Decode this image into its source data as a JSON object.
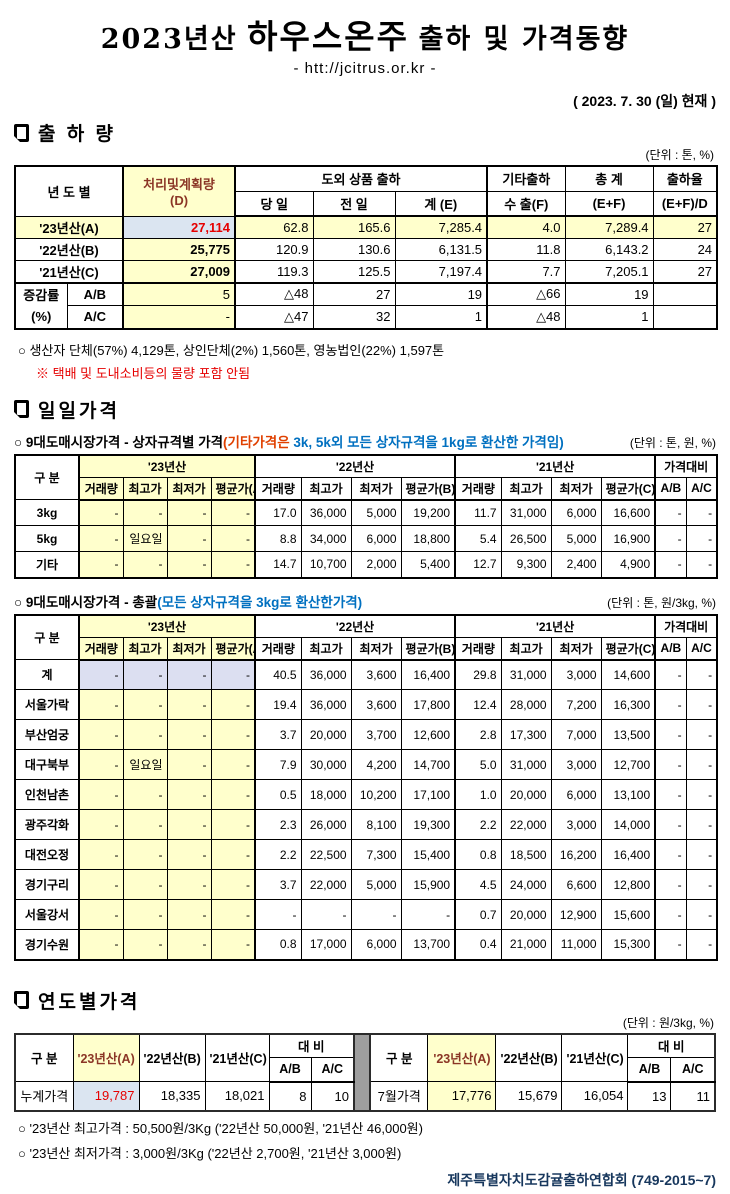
{
  "page": {
    "title_prefix": "2023년산",
    "title_main": "하우스온주",
    "title_suffix": "출하 및 가격동향",
    "url": "- htt://jcitrus.or.kr -",
    "as_of": "( 2023.  7.  30 (일) 현재 )",
    "org": "제주특별자치도감귤출하연합회 (749-2015~7)"
  },
  "colors": {
    "highlight_yellow": "#ffffcc",
    "highlight_blue": "#dbe5f1",
    "highlight_lavender": "#dcdff1",
    "red_value": "#e60000",
    "note_blue": "#0070c0",
    "org_navy": "#17375d"
  },
  "shipment": {
    "heading": "출 하 량",
    "unit": "(단위 : 톤, %)",
    "header": {
      "year": "년 도 별",
      "plan1": "처리및계획량",
      "plan2": "(D)",
      "island_group": "도외 상품 출하",
      "today": "당 일",
      "yesterday": "전 일",
      "total_e": "계 (E)",
      "other_group": "기타출하",
      "export_f": "수 출(F)",
      "grand1": "총   계",
      "grand2": "(E+F)",
      "rate1": "출하율",
      "rate2": "(E+F)/D"
    },
    "rows": {
      "a": {
        "label": "'23년산(A)",
        "plan": "27,114",
        "c1": "62.8",
        "c2": "165.6",
        "c3": "7,285.4",
        "c4": "4.0",
        "c5": "7,289.4",
        "c6": "27"
      },
      "b": {
        "label": "'22년산(B)",
        "plan": "25,775",
        "c1": "120.9",
        "c2": "130.6",
        "c3": "6,131.5",
        "c4": "11.8",
        "c5": "6,143.2",
        "c6": "24"
      },
      "c": {
        "label": "'21년산(C)",
        "plan": "27,009",
        "c1": "119.3",
        "c2": "125.5",
        "c3": "7,197.4",
        "c4": "7.7",
        "c5": "7,205.1",
        "c6": "27"
      },
      "growth_label_1": "증감률",
      "growth_label_2": "(%)",
      "ab": {
        "label": "A/B",
        "plan": "5",
        "c1": "△48",
        "c2": "27",
        "c3": "19",
        "c4": "△66",
        "c5": "19",
        "c6": ""
      },
      "ac": {
        "label": "A/C",
        "plan": "-",
        "c1": "△47",
        "c2": "32",
        "c3": "1",
        "c4": "△48",
        "c5": "1",
        "c6": ""
      }
    },
    "note1": "○ 생산자 단체(57%) 4,129톤, 상인단체(2%) 1,560톤, 영농법인(22%) 1,597톤",
    "note2": "※ 택배 및 도내소비등의 물량 포함 안됨"
  },
  "daily": {
    "heading": "일일가격",
    "header": {
      "gubun": "구   분",
      "y23": "'23년산",
      "y22": "'22년산",
      "y21": "'21년산",
      "compare": "가격대비",
      "vol": "거래량",
      "high": "최고가",
      "low": "최저가",
      "avg_a": "평균가(A)",
      "avg_b": "평균가(B)",
      "avg_c": "평균가(C)",
      "ab": "A/B",
      "ac": "A/C"
    },
    "by_size": {
      "title_black": "○ 9대도매시장가격 - 상자규격별 가격",
      "title_red": "(기타가격은",
      "title_blue": " 3k, 5k외 모든 상자규격을 1kg로 환산한 가격임)",
      "unit": "(단위 : 톤,  원, %)",
      "rows": [
        [
          "3kg",
          "-",
          "-",
          "-",
          "-",
          "17.0",
          "36,000",
          "5,000",
          "19,200",
          "11.7",
          "31,000",
          "6,000",
          "16,600",
          "-",
          "-"
        ],
        [
          "5kg",
          "-",
          "일요일",
          "-",
          "-",
          "8.8",
          "34,000",
          "6,000",
          "18,800",
          "5.4",
          "26,500",
          "5,000",
          "16,900",
          "-",
          "-"
        ],
        [
          "기타",
          "-",
          "-",
          "-",
          "-",
          "14.7",
          "10,700",
          "2,000",
          "5,400",
          "12.7",
          "9,300",
          "2,400",
          "4,900",
          "-",
          "-"
        ]
      ]
    },
    "overall": {
      "title_black": "○ 9대도매시장가격 - 총괄",
      "title_blue": "(모든 상자규격을 3kg로 환산한가격)",
      "unit": "(단위 : 톤, 원/3kg, %)",
      "rows": [
        [
          "계",
          "-",
          "-",
          "-",
          "-",
          "40.5",
          "36,000",
          "3,600",
          "16,400",
          "29.8",
          "31,000",
          "3,000",
          "14,600",
          "-",
          "-"
        ],
        [
          "서울가락",
          "-",
          "-",
          "-",
          "-",
          "19.4",
          "36,000",
          "3,600",
          "17,800",
          "12.4",
          "28,000",
          "7,200",
          "16,300",
          "-",
          "-"
        ],
        [
          "부산엄궁",
          "-",
          "-",
          "-",
          "-",
          "3.7",
          "20,000",
          "3,700",
          "12,600",
          "2.8",
          "17,300",
          "7,000",
          "13,500",
          "-",
          "-"
        ],
        [
          "대구북부",
          "-",
          "일요일",
          "-",
          "-",
          "7.9",
          "30,000",
          "4,200",
          "14,700",
          "5.0",
          "31,000",
          "3,000",
          "12,700",
          "-",
          "-"
        ],
        [
          "인천남촌",
          "-",
          "-",
          "-",
          "-",
          "0.5",
          "18,000",
          "10,200",
          "17,100",
          "1.0",
          "20,000",
          "6,000",
          "13,100",
          "-",
          "-"
        ],
        [
          "광주각화",
          "-",
          "-",
          "-",
          "-",
          "2.3",
          "26,000",
          "8,100",
          "19,300",
          "2.2",
          "22,000",
          "3,000",
          "14,000",
          "-",
          "-"
        ],
        [
          "대전오정",
          "-",
          "-",
          "-",
          "-",
          "2.2",
          "22,500",
          "7,300",
          "15,400",
          "0.8",
          "18,500",
          "16,200",
          "16,400",
          "-",
          "-"
        ],
        [
          "경기구리",
          "-",
          "-",
          "-",
          "-",
          "3.7",
          "22,000",
          "5,000",
          "15,900",
          "4.5",
          "24,000",
          "6,600",
          "12,800",
          "-",
          "-"
        ],
        [
          "서울강서",
          "-",
          "-",
          "-",
          "-",
          "-",
          "-",
          "-",
          "-",
          "0.7",
          "20,000",
          "12,900",
          "15,600",
          "-",
          "-"
        ],
        [
          "경기수원",
          "-",
          "-",
          "-",
          "-",
          "0.8",
          "17,000",
          "6,000",
          "13,700",
          "0.4",
          "21,000",
          "11,000",
          "15,300",
          "-",
          "-"
        ]
      ]
    }
  },
  "yearly": {
    "heading": "연도별가격",
    "unit": "(단위 : 원/3kg, %)",
    "header": {
      "gubun": "구   분",
      "y23": "'23년산(A)",
      "y22": "'22년산(B)",
      "y21": "'21년산(C)",
      "daebi": "대    비",
      "ab": "A/B",
      "ac": "A/C"
    },
    "left": {
      "label": "누계가격",
      "v23": "19,787",
      "v22": "18,335",
      "v21": "18,021",
      "ab": "8",
      "ac": "10"
    },
    "right": {
      "label": "7월가격",
      "v23": "17,776",
      "v22": "15,679",
      "v21": "16,054",
      "ab": "13",
      "ac": "11"
    },
    "note1": "○ '23년산 최고가격 : 50,500원/3Kg ('22년산 50,000원, '21년산 46,000원)",
    "note2": "○ '23년산 최저가격 :  3,000원/3Kg ('22년산  2,700원, '21년산  3,000원)"
  }
}
